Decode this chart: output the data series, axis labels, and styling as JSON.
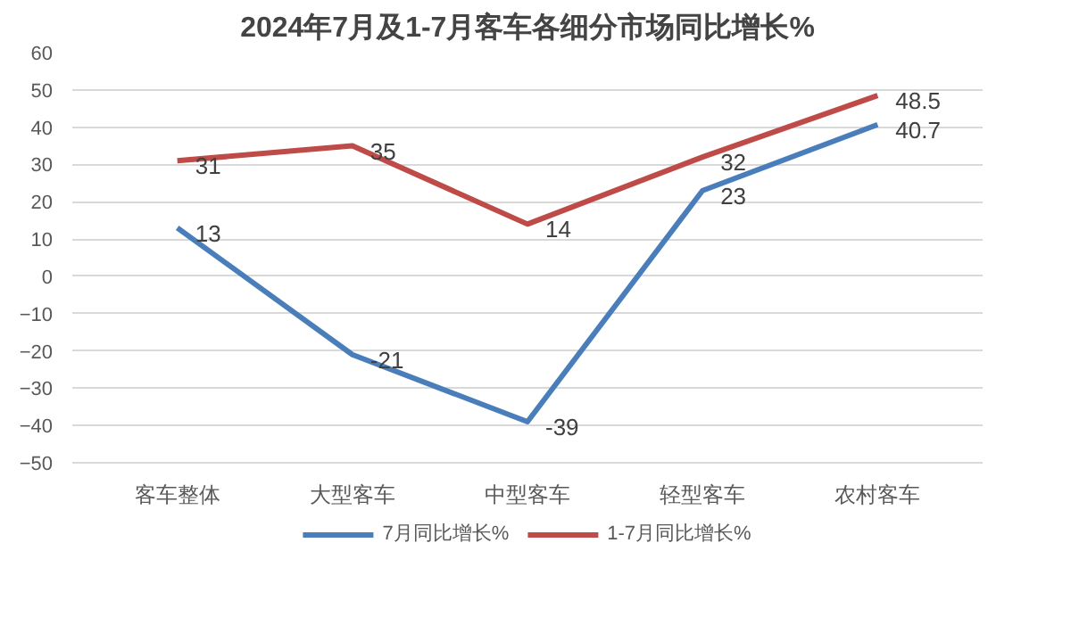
{
  "chart_data": {
    "type": "line",
    "title": "2024年7月及1-7月客车各细分市场同比增长%",
    "categories": [
      "客车整体",
      "大型客车",
      "中型客车",
      "轻型客车",
      "农村客车"
    ],
    "series": [
      {
        "name": "7月同比增长%",
        "color": "#4a7ebb",
        "values": [
          13,
          -21,
          -39,
          23,
          40.7
        ]
      },
      {
        "name": "1-7月同比增长%",
        "color": "#be4b48",
        "values": [
          31,
          35,
          14,
          32,
          48.5
        ]
      }
    ],
    "ylim": [
      -50,
      60
    ],
    "yticks": [
      -50,
      -40,
      -30,
      -20,
      -10,
      0,
      10,
      20,
      30,
      40,
      50,
      60
    ],
    "grid": "y",
    "legend": "bottom",
    "data_labels": true,
    "marker": "none",
    "line_style": "solid"
  }
}
